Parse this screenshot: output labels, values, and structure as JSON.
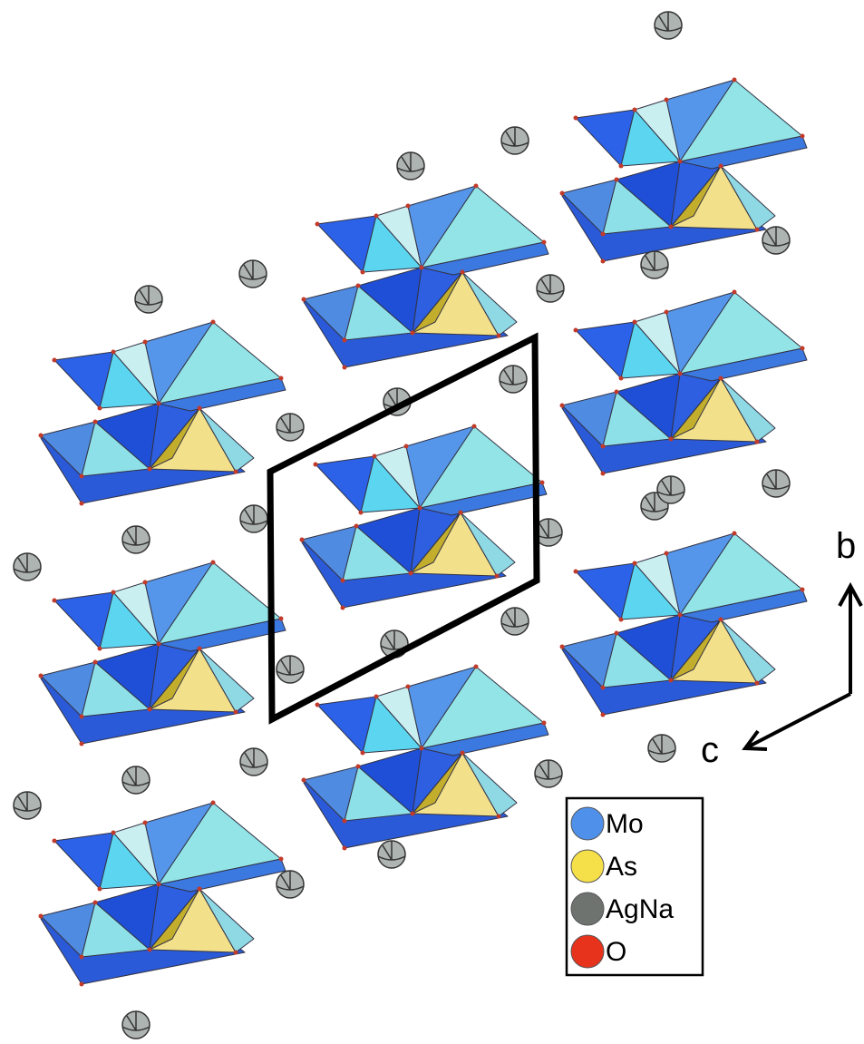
{
  "axes": {
    "b": "b",
    "c": "c"
  },
  "legend": [
    {
      "label": "Mo",
      "color": "#4f90ea"
    },
    {
      "label": "As",
      "color": "#f6e04a"
    },
    {
      "label": "AgNa",
      "color": "#6f7370"
    },
    {
      "label": "O",
      "color": "#e8331c"
    }
  ]
}
